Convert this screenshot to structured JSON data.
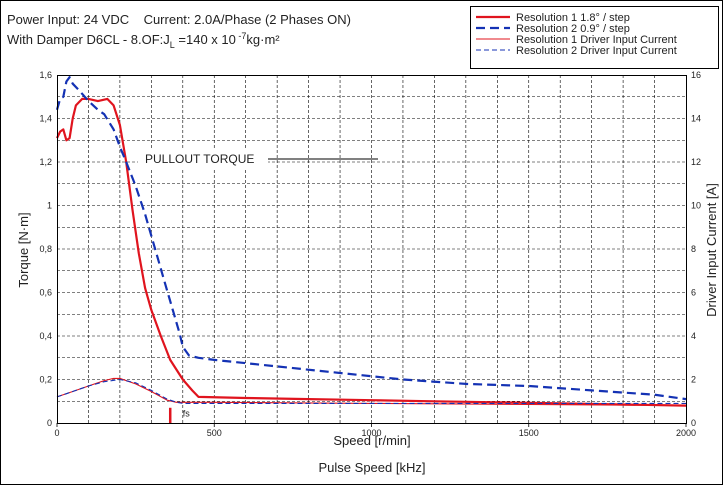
{
  "header": {
    "line1": "Power Input: 24 VDC    Current: 2.0A/Phase (2 Phases ON)",
    "line2_prefix": "With Damper D6CL - 8.OF:J",
    "line2_sub": "L",
    "line2_mid": " =140 x 10",
    "line2_sup": " -7",
    "line2_suffix": "kg·m²"
  },
  "colors": {
    "red": "#e0141e",
    "blue": "#1432b4",
    "grid": "#000000"
  },
  "chart_data": {
    "type": "line",
    "xlabel": "Speed [r/min]",
    "xlabel2": "Pulse Speed [kHz]",
    "ylabel": "Torque [N·m]",
    "ylabel_right": "Driver Input Current [A]",
    "xlim": [
      0,
      2000
    ],
    "ylim": [
      0,
      1.6
    ],
    "ylim_right": [
      0,
      16
    ],
    "x_ticks": [
      0,
      500,
      1000,
      1500,
      2000
    ],
    "x_tick_labels": [
      "0",
      "500",
      "1000",
      "1500",
      "2000"
    ],
    "y_ticks": [
      0,
      0.2,
      0.4,
      0.6,
      0.8,
      1.0,
      1.2,
      1.4,
      1.6
    ],
    "y_tick_labels": [
      "0",
      "0,2",
      "0,4",
      "0,6",
      "0,8",
      "1",
      "1,2",
      "1,4",
      "1,6"
    ],
    "y_right_ticks": [
      0,
      2,
      4,
      6,
      8,
      10,
      12,
      14,
      16
    ],
    "y_right_tick_labels": [
      "0",
      "2",
      "4",
      "6",
      "8",
      "10",
      "12",
      "14",
      "16"
    ],
    "grid": true,
    "legend_position": "top-right",
    "annotations": [
      {
        "text": "PULLOUT TORQUE"
      },
      {
        "text": "fs"
      }
    ],
    "series": [
      {
        "name": "Resolution 1  1.8° / step",
        "axis": "torque",
        "color": "#e0141e",
        "style": "solid-thick",
        "x": [
          0,
          10,
          20,
          30,
          40,
          50,
          60,
          80,
          100,
          130,
          160,
          180,
          200,
          220,
          240,
          260,
          280,
          300,
          330,
          360,
          400,
          430,
          450,
          600,
          800,
          1000,
          1200,
          1400,
          1600,
          1800,
          2000
        ],
        "y": [
          1.31,
          1.34,
          1.35,
          1.3,
          1.31,
          1.4,
          1.46,
          1.49,
          1.49,
          1.48,
          1.49,
          1.46,
          1.37,
          1.2,
          0.98,
          0.78,
          0.62,
          0.52,
          0.4,
          0.29,
          0.2,
          0.15,
          0.12,
          0.115,
          0.11,
          0.105,
          0.1,
          0.095,
          0.09,
          0.085,
          0.08
        ]
      },
      {
        "name": "Resolution 2  0.9° / step",
        "axis": "torque",
        "color": "#1432b4",
        "style": "dashed-thick",
        "x": [
          0,
          10,
          20,
          30,
          40,
          50,
          70,
          100,
          130,
          150,
          180,
          200,
          220,
          250,
          280,
          310,
          340,
          370,
          390,
          400,
          420,
          450,
          500,
          700,
          900,
          1100,
          1300,
          1500,
          1700,
          1900,
          2000
        ],
        "y": [
          1.44,
          1.49,
          1.5,
          1.57,
          1.59,
          1.56,
          1.53,
          1.48,
          1.44,
          1.42,
          1.35,
          1.27,
          1.2,
          1.09,
          0.96,
          0.81,
          0.66,
          0.51,
          0.41,
          0.35,
          0.31,
          0.3,
          0.29,
          0.26,
          0.23,
          0.2,
          0.18,
          0.17,
          0.15,
          0.13,
          0.11
        ]
      },
      {
        "name": "Resolution 1  Driver Input Current",
        "axis": "current",
        "color": "#e0141e",
        "style": "solid-thin",
        "x": [
          0,
          50,
          100,
          150,
          180,
          200,
          250,
          300,
          350,
          380,
          400,
          500,
          1000,
          1500,
          2000
        ],
        "y": [
          1.2,
          1.45,
          1.7,
          1.95,
          2.05,
          2.05,
          1.8,
          1.45,
          1.05,
          0.95,
          0.95,
          0.95,
          0.9,
          0.85,
          0.8
        ]
      },
      {
        "name": "Resolution 2  Driver Input Current",
        "axis": "current",
        "color": "#1432b4",
        "style": "dashed-thin",
        "x": [
          0,
          50,
          100,
          150,
          200,
          250,
          300,
          350,
          380,
          400,
          500,
          1000,
          1500,
          2000
        ],
        "y": [
          1.2,
          1.45,
          1.7,
          1.9,
          2.0,
          1.85,
          1.5,
          1.1,
          0.95,
          0.9,
          0.9,
          0.9,
          0.9,
          0.9
        ]
      }
    ]
  }
}
